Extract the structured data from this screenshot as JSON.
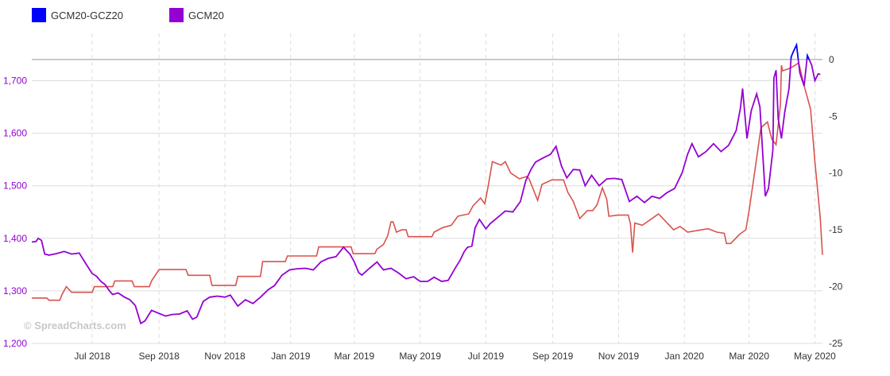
{
  "colors": {
    "spread_series": "#0000ff",
    "price_series": "#9400d3",
    "spread_line": "#d9534f",
    "left_tick": "#9400d3",
    "right_tick": "#333333",
    "grid": "#dddddd",
    "zero_line": "#999999"
  },
  "watermark": "© SpreadCharts.com",
  "chart_data": {
    "type": "line",
    "x_tick_labels": [
      "Jul 2018",
      "Sep 2018",
      "Nov 2018",
      "Jan 2019",
      "Mar 2019",
      "May 2019",
      "Jul 2019",
      "Sep 2019",
      "Nov 2019",
      "Jan 2020",
      "Mar 2020",
      "May 2020"
    ],
    "x_ticks": [
      "2018-07-01",
      "2018-09-01",
      "2018-11-01",
      "2019-01-01",
      "2019-03-01",
      "2019-05-01",
      "2019-07-01",
      "2019-09-01",
      "2019-11-01",
      "2020-01-01",
      "2020-03-01",
      "2020-05-01"
    ],
    "x_range": [
      "2018-05-06",
      "2020-05-08"
    ],
    "y_left": {
      "range": [
        1200,
        1790
      ],
      "ticks": [
        1200,
        1300,
        1400,
        1500,
        1600,
        1700
      ],
      "labels": [
        "1,200",
        "1,300",
        "1,400",
        "1,500",
        "1,600",
        "1,700"
      ]
    },
    "y_right": {
      "range": [
        -25,
        2.3
      ],
      "ticks": [
        0,
        -5,
        -10,
        -15,
        -20,
        -25
      ],
      "labels": [
        "0",
        "-5",
        "-10",
        "-15",
        "-20",
        "-25"
      ],
      "zero_line": 0
    },
    "grid": true,
    "legend_position": "top-left",
    "series": [
      {
        "name": "GCM20-GCZ20",
        "axis": "right",
        "points": [
          [
            "2018-05-06",
            -21.0
          ],
          [
            "2018-05-20",
            -21.0
          ],
          [
            "2018-05-22",
            -21.2
          ],
          [
            "2018-06-01",
            -21.2
          ],
          [
            "2018-06-03",
            -20.7
          ],
          [
            "2018-06-07",
            -20.0
          ],
          [
            "2018-06-12",
            -20.5
          ],
          [
            "2018-07-01",
            -20.5
          ],
          [
            "2018-07-03",
            -20.0
          ],
          [
            "2018-07-20",
            -20.0
          ],
          [
            "2018-07-22",
            -19.5
          ],
          [
            "2018-08-07",
            -19.5
          ],
          [
            "2018-08-09",
            -20.0
          ],
          [
            "2018-08-23",
            -20.0
          ],
          [
            "2018-08-25",
            -19.5
          ],
          [
            "2018-09-01",
            -18.5
          ],
          [
            "2018-09-26",
            -18.5
          ],
          [
            "2018-09-28",
            -19.0
          ],
          [
            "2018-10-18",
            -19.0
          ],
          [
            "2018-10-20",
            -19.9
          ],
          [
            "2018-11-11",
            -19.9
          ],
          [
            "2018-11-13",
            -19.1
          ],
          [
            "2018-12-04",
            -19.1
          ],
          [
            "2018-12-06",
            -17.8
          ],
          [
            "2018-12-27",
            -17.8
          ],
          [
            "2018-12-29",
            -17.3
          ],
          [
            "2019-01-25",
            -17.3
          ],
          [
            "2019-01-27",
            -16.5
          ],
          [
            "2019-02-26",
            -16.5
          ],
          [
            "2019-02-28",
            -17.1
          ],
          [
            "2019-03-20",
            -17.1
          ],
          [
            "2019-03-22",
            -16.7
          ],
          [
            "2019-03-28",
            -16.3
          ],
          [
            "2019-04-01",
            -15.5
          ],
          [
            "2019-04-04",
            -14.3
          ],
          [
            "2019-04-06",
            -14.3
          ],
          [
            "2019-04-09",
            -15.2
          ],
          [
            "2019-04-14",
            -15.0
          ],
          [
            "2019-04-18",
            -15.0
          ],
          [
            "2019-04-20",
            -15.6
          ],
          [
            "2019-05-12",
            -15.6
          ],
          [
            "2019-05-14",
            -15.2
          ],
          [
            "2019-05-22",
            -14.8
          ],
          [
            "2019-05-30",
            -14.6
          ],
          [
            "2019-06-05",
            -13.8
          ],
          [
            "2019-06-15",
            -13.6
          ],
          [
            "2019-06-19",
            -12.9
          ],
          [
            "2019-06-26",
            -12.2
          ],
          [
            "2019-06-30",
            -12.7
          ],
          [
            "2019-07-03",
            -11.2
          ],
          [
            "2019-07-07",
            -9.0
          ],
          [
            "2019-07-15",
            -9.3
          ],
          [
            "2019-07-19",
            -9.0
          ],
          [
            "2019-07-24",
            -10.0
          ],
          [
            "2019-08-01",
            -10.5
          ],
          [
            "2019-08-08",
            -10.3
          ],
          [
            "2019-08-10",
            -10.5
          ],
          [
            "2019-08-18",
            -12.4
          ],
          [
            "2019-08-22",
            -11.0
          ],
          [
            "2019-08-31",
            -10.6
          ],
          [
            "2019-09-11",
            -10.6
          ],
          [
            "2019-09-15",
            -11.7
          ],
          [
            "2019-09-20",
            -12.5
          ],
          [
            "2019-09-26",
            -14.0
          ],
          [
            "2019-10-03",
            -13.3
          ],
          [
            "2019-10-08",
            -13.3
          ],
          [
            "2019-10-12",
            -12.8
          ],
          [
            "2019-10-17",
            -11.3
          ],
          [
            "2019-10-21",
            -12.3
          ],
          [
            "2019-10-23",
            -13.8
          ],
          [
            "2019-11-01",
            -13.7
          ],
          [
            "2019-11-10",
            -13.7
          ],
          [
            "2019-11-12",
            -14.5
          ],
          [
            "2019-11-14",
            -17.0
          ],
          [
            "2019-11-16",
            -14.4
          ],
          [
            "2019-11-23",
            -14.6
          ],
          [
            "2019-12-08",
            -13.6
          ],
          [
            "2019-12-15",
            -14.3
          ],
          [
            "2019-12-22",
            -15.0
          ],
          [
            "2019-12-28",
            -14.7
          ],
          [
            "2020-01-04",
            -15.2
          ],
          [
            "2020-01-17",
            -15.0
          ],
          [
            "2020-01-23",
            -14.9
          ],
          [
            "2020-01-31",
            -15.2
          ],
          [
            "2020-02-07",
            -15.3
          ],
          [
            "2020-02-09",
            -16.2
          ],
          [
            "2020-02-13",
            -16.2
          ],
          [
            "2020-02-21",
            -15.4
          ],
          [
            "2020-02-27",
            -15.0
          ],
          [
            "2020-03-01",
            -13.3
          ],
          [
            "2020-03-06",
            -10.0
          ],
          [
            "2020-03-12",
            -6.0
          ],
          [
            "2020-03-18",
            -5.5
          ],
          [
            "2020-03-22",
            -7.0
          ],
          [
            "2020-03-26",
            -7.5
          ],
          [
            "2020-03-30",
            -4.0
          ],
          [
            "2020-03-31",
            -0.5
          ],
          [
            "2020-04-01",
            -1.0
          ],
          [
            "2020-04-07",
            -0.8
          ],
          [
            "2020-04-11",
            -0.6
          ],
          [
            "2020-04-16",
            -0.3
          ],
          [
            "2020-04-21",
            -2.3
          ],
          [
            "2020-04-27",
            -4.4
          ],
          [
            "2020-05-01",
            -9.0
          ],
          [
            "2020-05-04",
            -12.0
          ],
          [
            "2020-05-06",
            -14.0
          ],
          [
            "2020-05-08",
            -17.2
          ]
        ]
      },
      {
        "name": "GCM20",
        "axis": "left",
        "points": [
          [
            "2018-05-06",
            1393
          ],
          [
            "2018-05-10",
            1394
          ],
          [
            "2018-05-12",
            1400
          ],
          [
            "2018-05-15",
            1396
          ],
          [
            "2018-05-18",
            1370
          ],
          [
            "2018-05-22",
            1368
          ],
          [
            "2018-05-29",
            1371
          ],
          [
            "2018-06-05",
            1375
          ],
          [
            "2018-06-12",
            1370
          ],
          [
            "2018-06-19",
            1372
          ],
          [
            "2018-06-25",
            1352
          ],
          [
            "2018-07-01",
            1333
          ],
          [
            "2018-07-05",
            1328
          ],
          [
            "2018-07-09",
            1318
          ],
          [
            "2018-07-13",
            1312
          ],
          [
            "2018-07-17",
            1300
          ],
          [
            "2018-07-20",
            1293
          ],
          [
            "2018-07-25",
            1296
          ],
          [
            "2018-07-31",
            1288
          ],
          [
            "2018-08-05",
            1283
          ],
          [
            "2018-08-10",
            1272
          ],
          [
            "2018-08-15",
            1238
          ],
          [
            "2018-08-19",
            1243
          ],
          [
            "2018-08-25",
            1263
          ],
          [
            "2018-09-01",
            1257
          ],
          [
            "2018-09-07",
            1252
          ],
          [
            "2018-09-13",
            1255
          ],
          [
            "2018-09-20",
            1256
          ],
          [
            "2018-09-27",
            1262
          ],
          [
            "2018-10-02",
            1246
          ],
          [
            "2018-10-06",
            1250
          ],
          [
            "2018-10-12",
            1280
          ],
          [
            "2018-10-18",
            1288
          ],
          [
            "2018-10-25",
            1290
          ],
          [
            "2018-11-01",
            1288
          ],
          [
            "2018-11-06",
            1292
          ],
          [
            "2018-11-13",
            1271
          ],
          [
            "2018-11-20",
            1283
          ],
          [
            "2018-11-27",
            1276
          ],
          [
            "2018-12-04",
            1288
          ],
          [
            "2018-12-11",
            1302
          ],
          [
            "2018-12-17",
            1310
          ],
          [
            "2018-12-24",
            1330
          ],
          [
            "2018-12-31",
            1340
          ],
          [
            "2019-01-07",
            1342
          ],
          [
            "2019-01-15",
            1343
          ],
          [
            "2019-01-22",
            1340
          ],
          [
            "2019-01-29",
            1355
          ],
          [
            "2019-02-05",
            1362
          ],
          [
            "2019-02-12",
            1365
          ],
          [
            "2019-02-19",
            1383
          ],
          [
            "2019-02-25",
            1370
          ],
          [
            "2019-03-01",
            1355
          ],
          [
            "2019-03-05",
            1335
          ],
          [
            "2019-03-08",
            1330
          ],
          [
            "2019-03-15",
            1343
          ],
          [
            "2019-03-22",
            1355
          ],
          [
            "2019-03-28",
            1340
          ],
          [
            "2019-04-04",
            1343
          ],
          [
            "2019-04-11",
            1334
          ],
          [
            "2019-04-18",
            1323
          ],
          [
            "2019-04-25",
            1327
          ],
          [
            "2019-05-01",
            1318
          ],
          [
            "2019-05-08",
            1318
          ],
          [
            "2019-05-14",
            1326
          ],
          [
            "2019-05-21",
            1318
          ],
          [
            "2019-05-27",
            1320
          ],
          [
            "2019-06-03",
            1345
          ],
          [
            "2019-06-07",
            1358
          ],
          [
            "2019-06-11",
            1375
          ],
          [
            "2019-06-14",
            1383
          ],
          [
            "2019-06-18",
            1385
          ],
          [
            "2019-06-21",
            1420
          ],
          [
            "2019-06-25",
            1436
          ],
          [
            "2019-07-01",
            1418
          ],
          [
            "2019-07-05",
            1428
          ],
          [
            "2019-07-12",
            1440
          ],
          [
            "2019-07-19",
            1452
          ],
          [
            "2019-07-26",
            1450
          ],
          [
            "2019-08-02",
            1470
          ],
          [
            "2019-08-07",
            1510
          ],
          [
            "2019-08-12",
            1532
          ],
          [
            "2019-08-16",
            1545
          ],
          [
            "2019-08-23",
            1553
          ],
          [
            "2019-08-30",
            1560
          ],
          [
            "2019-09-04",
            1575
          ],
          [
            "2019-09-09",
            1538
          ],
          [
            "2019-09-14",
            1515
          ],
          [
            "2019-09-20",
            1531
          ],
          [
            "2019-09-26",
            1530
          ],
          [
            "2019-10-01",
            1500
          ],
          [
            "2019-10-07",
            1520
          ],
          [
            "2019-10-14",
            1500
          ],
          [
            "2019-10-21",
            1513
          ],
          [
            "2019-10-28",
            1514
          ],
          [
            "2019-11-04",
            1512
          ],
          [
            "2019-11-11",
            1470
          ],
          [
            "2019-11-18",
            1480
          ],
          [
            "2019-11-25",
            1468
          ],
          [
            "2019-12-02",
            1480
          ],
          [
            "2019-12-09",
            1476
          ],
          [
            "2019-12-16",
            1487
          ],
          [
            "2019-12-23",
            1495
          ],
          [
            "2019-12-30",
            1525
          ],
          [
            "2020-01-04",
            1560
          ],
          [
            "2020-01-08",
            1580
          ],
          [
            "2020-01-14",
            1555
          ],
          [
            "2020-01-21",
            1565
          ],
          [
            "2020-01-28",
            1580
          ],
          [
            "2020-02-04",
            1565
          ],
          [
            "2020-02-11",
            1577
          ],
          [
            "2020-02-18",
            1605
          ],
          [
            "2020-02-22",
            1648
          ],
          [
            "2020-02-24",
            1685
          ],
          [
            "2020-02-28",
            1590
          ],
          [
            "2020-03-03",
            1643
          ],
          [
            "2020-03-08",
            1675
          ],
          [
            "2020-03-11",
            1650
          ],
          [
            "2020-03-16",
            1480
          ],
          [
            "2020-03-19",
            1495
          ],
          [
            "2020-03-23",
            1568
          ],
          [
            "2020-03-24",
            1705
          ],
          [
            "2020-03-26",
            1720
          ],
          [
            "2020-03-28",
            1628
          ],
          [
            "2020-03-31",
            1590
          ],
          [
            "2020-04-03",
            1640
          ],
          [
            "2020-04-07",
            1685
          ],
          [
            "2020-04-09",
            1745
          ],
          [
            "2020-04-11",
            1755
          ],
          [
            "2020-04-14",
            1768
          ],
          [
            "2020-04-17",
            1715
          ],
          [
            "2020-04-21",
            1690
          ],
          [
            "2020-04-24",
            1748
          ],
          [
            "2020-04-28",
            1730
          ],
          [
            "2020-05-01",
            1700
          ],
          [
            "2020-05-04",
            1713
          ],
          [
            "2020-05-06",
            1712
          ]
        ]
      }
    ]
  }
}
